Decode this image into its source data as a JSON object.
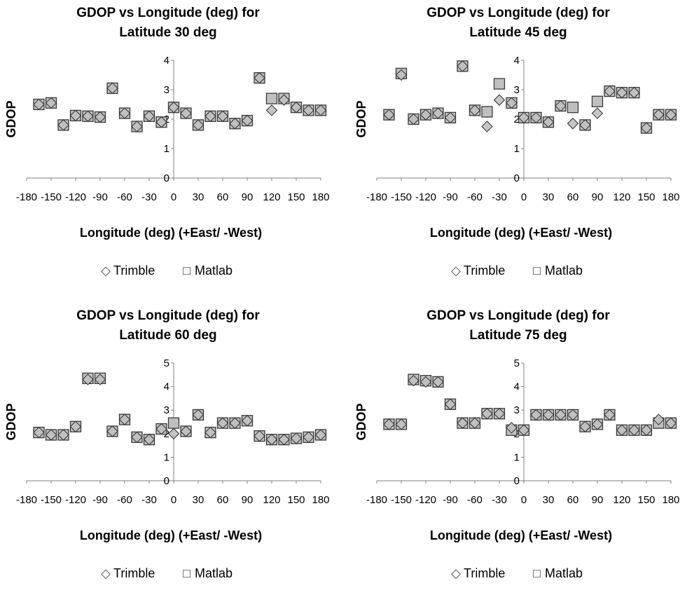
{
  "chart_data": [
    {
      "type": "scatter",
      "title_lines": [
        "GDOP vs Longitude (deg) for",
        "Latitude 30 deg"
      ],
      "xlabel": "Longitude (deg) (+East/ -West)",
      "ylabel": "GDOP",
      "xlim": [
        -180,
        180
      ],
      "ylim": [
        0,
        4
      ],
      "xticks": [
        -180,
        -150,
        -120,
        -90,
        -60,
        -30,
        0,
        30,
        60,
        90,
        120,
        150,
        180
      ],
      "yticks": [
        0,
        1,
        2,
        3,
        4
      ],
      "grid": false,
      "legend_position": "bottom",
      "x": [
        -165,
        -150,
        -135,
        -120,
        -105,
        -90,
        -75,
        -60,
        -45,
        -30,
        -15,
        0,
        15,
        30,
        45,
        60,
        75,
        90,
        105,
        120,
        135,
        150,
        165,
        180
      ],
      "series": [
        {
          "name": "Trimble",
          "marker": "diamond",
          "values": [
            2.5,
            2.55,
            1.8,
            2.12,
            2.1,
            2.07,
            3.05,
            2.2,
            1.75,
            2.1,
            1.9,
            2.4,
            2.2,
            1.8,
            2.1,
            2.1,
            1.85,
            1.95,
            3.4,
            2.3,
            2.65,
            2.4,
            2.3,
            2.3
          ]
        },
        {
          "name": "Matlab",
          "marker": "square",
          "values": [
            2.5,
            2.55,
            1.8,
            2.12,
            2.1,
            2.07,
            3.05,
            2.2,
            1.75,
            2.1,
            1.9,
            2.4,
            2.2,
            1.8,
            2.1,
            2.1,
            1.85,
            1.95,
            3.4,
            2.7,
            2.7,
            2.4,
            2.3,
            2.3
          ]
        }
      ]
    },
    {
      "type": "scatter",
      "title_lines": [
        "GDOP vs Longitude (deg) for",
        "Latitude 45 deg"
      ],
      "xlabel": "Longitude (deg) (+East/ -West)",
      "ylabel": "GDOP",
      "xlim": [
        -180,
        180
      ],
      "ylim": [
        0,
        4
      ],
      "xticks": [
        -180,
        -150,
        -120,
        -90,
        -60,
        -30,
        0,
        30,
        60,
        90,
        120,
        150,
        180
      ],
      "yticks": [
        0,
        1,
        2,
        3,
        4
      ],
      "grid": false,
      "legend_position": "bottom",
      "x": [
        -165,
        -150,
        -135,
        -120,
        -105,
        -90,
        -75,
        -60,
        -45,
        -30,
        -15,
        0,
        15,
        30,
        45,
        60,
        75,
        90,
        105,
        120,
        135,
        150,
        165,
        180
      ],
      "series": [
        {
          "name": "Trimble",
          "marker": "diamond",
          "values": [
            2.15,
            3.5,
            2.0,
            2.15,
            2.2,
            2.05,
            3.8,
            2.3,
            1.75,
            2.65,
            2.55,
            2.05,
            2.05,
            1.9,
            2.45,
            1.85,
            1.8,
            2.2,
            2.95,
            2.9,
            2.9,
            1.7,
            2.15,
            2.15
          ]
        },
        {
          "name": "Matlab",
          "marker": "square",
          "values": [
            2.15,
            3.55,
            2.0,
            2.15,
            2.2,
            2.05,
            3.8,
            2.3,
            2.25,
            3.2,
            2.55,
            2.05,
            2.05,
            1.9,
            2.45,
            2.4,
            1.8,
            2.6,
            2.95,
            2.9,
            2.9,
            1.7,
            2.15,
            2.15
          ]
        }
      ]
    },
    {
      "type": "scatter",
      "title_lines": [
        "GDOP vs Longitude (deg) for",
        "Latitude 60 deg"
      ],
      "xlabel": "Longitude (deg) (+East/ -West)",
      "ylabel": "GDOP",
      "xlim": [
        -180,
        180
      ],
      "ylim": [
        0,
        5
      ],
      "xticks": [
        -180,
        -150,
        -120,
        -90,
        -60,
        -30,
        0,
        30,
        60,
        90,
        120,
        150,
        180
      ],
      "yticks": [
        0,
        1,
        2,
        3,
        4,
        5
      ],
      "grid": false,
      "legend_position": "bottom",
      "x": [
        -165,
        -150,
        -135,
        -120,
        -105,
        -90,
        -75,
        -60,
        -45,
        -30,
        -15,
        0,
        15,
        30,
        45,
        60,
        75,
        90,
        105,
        120,
        135,
        150,
        165,
        180
      ],
      "series": [
        {
          "name": "Trimble",
          "marker": "diamond",
          "values": [
            2.05,
            1.95,
            1.95,
            2.3,
            4.3,
            4.3,
            2.1,
            2.6,
            1.85,
            1.75,
            2.2,
            2.0,
            2.1,
            2.8,
            2.05,
            2.45,
            2.45,
            2.55,
            1.9,
            1.75,
            1.75,
            1.8,
            1.85,
            1.95
          ]
        },
        {
          "name": "Matlab",
          "marker": "square",
          "values": [
            2.05,
            1.95,
            1.95,
            2.3,
            4.35,
            4.35,
            2.1,
            2.6,
            1.85,
            1.75,
            2.2,
            2.45,
            2.1,
            2.8,
            2.05,
            2.45,
            2.45,
            2.55,
            1.9,
            1.75,
            1.75,
            1.8,
            1.85,
            1.95
          ]
        }
      ]
    },
    {
      "type": "scatter",
      "title_lines": [
        "GDOP vs Longitude (deg) for",
        "Latitude 75 deg"
      ],
      "xlabel": "Longitude (deg) (+East/ -West)",
      "ylabel": "GDOP",
      "xlim": [
        -180,
        180
      ],
      "ylim": [
        0,
        5
      ],
      "xticks": [
        -180,
        -150,
        -120,
        -90,
        -60,
        -30,
        0,
        30,
        60,
        90,
        120,
        150,
        180
      ],
      "yticks": [
        0,
        1,
        2,
        3,
        4,
        5
      ],
      "grid": false,
      "legend_position": "bottom",
      "x": [
        -165,
        -150,
        -135,
        -120,
        -105,
        -90,
        -75,
        -60,
        -45,
        -30,
        -15,
        0,
        15,
        30,
        45,
        60,
        75,
        90,
        105,
        120,
        135,
        150,
        165,
        180
      ],
      "series": [
        {
          "name": "Trimble",
          "marker": "diamond",
          "values": [
            2.4,
            2.4,
            4.25,
            4.2,
            4.2,
            3.25,
            2.45,
            2.45,
            2.85,
            2.85,
            2.25,
            2.15,
            2.8,
            2.8,
            2.8,
            2.8,
            2.3,
            2.4,
            2.8,
            2.15,
            2.15,
            2.15,
            2.6,
            2.45
          ]
        },
        {
          "name": "Matlab",
          "marker": "square",
          "values": [
            2.4,
            2.4,
            4.3,
            4.25,
            4.2,
            3.25,
            2.45,
            2.45,
            2.85,
            2.85,
            2.15,
            2.15,
            2.8,
            2.8,
            2.8,
            2.8,
            2.3,
            2.4,
            2.8,
            2.15,
            2.15,
            2.15,
            2.45,
            2.45
          ]
        }
      ]
    }
  ],
  "legend": {
    "trimble_symbol": "◇",
    "matlab_symbol": "□"
  },
  "colors": {
    "marker_fill": "#c0c0c0",
    "marker_stroke": "#3a3a3a",
    "axis": "#808080",
    "text": "#000000"
  }
}
